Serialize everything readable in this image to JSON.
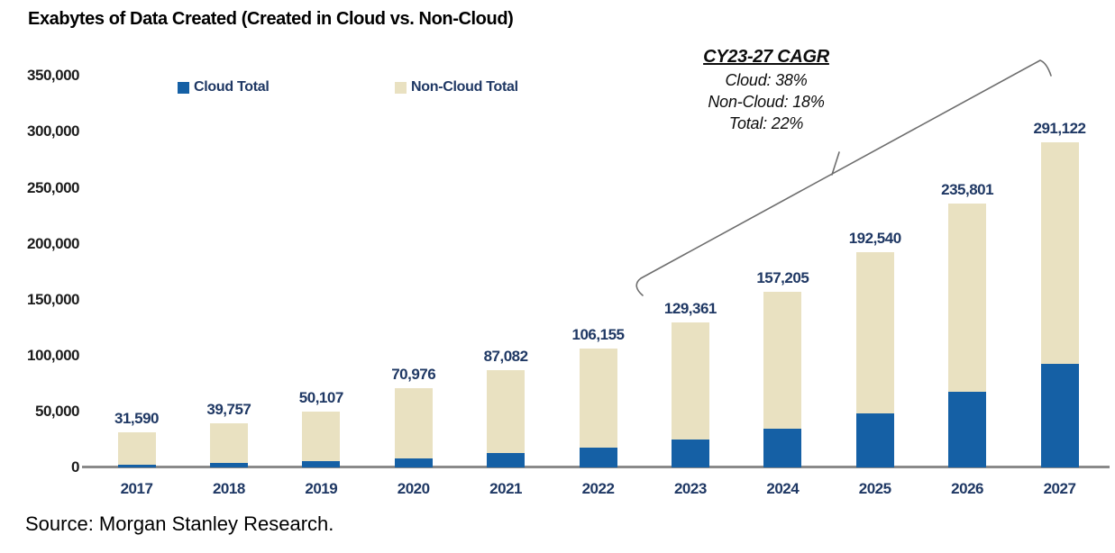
{
  "title": "Exabytes of Data Created (Created in Cloud vs. Non-Cloud)",
  "source_note": "Source: Morgan Stanley Research.",
  "legend": [
    {
      "label": "Cloud Total",
      "color": "#1560A5"
    },
    {
      "label": "Non-Cloud Total",
      "color": "#E9E1C1"
    }
  ],
  "cagr_annotation": {
    "heading": "CY23-27 CAGR",
    "lines": [
      "Cloud: 38%",
      "Non-Cloud: 18%",
      "Total: 22%"
    ]
  },
  "chart_data": {
    "type": "bar",
    "stacked": true,
    "title": "Exabytes of Data Created (Created in Cloud vs. Non-Cloud)",
    "categories": [
      "2017",
      "2018",
      "2019",
      "2020",
      "2021",
      "2022",
      "2023",
      "2024",
      "2025",
      "2026",
      "2027"
    ],
    "totals": [
      31590,
      39757,
      50107,
      70976,
      87082,
      106155,
      129361,
      157205,
      192540,
      235801,
      291122
    ],
    "total_labels": [
      "31,590",
      "39,757",
      "50,107",
      "70,976",
      "87,082",
      "106,155",
      "129,361",
      "157,205",
      "192,540",
      "235,801",
      "291,122"
    ],
    "series": [
      {
        "name": "Cloud Total",
        "color": "#1560A5",
        "estimated_from_pixels": true,
        "values": [
          2500,
          3900,
          5700,
          8400,
          12600,
          17500,
          25000,
          34800,
          48700,
          67700,
          93000
        ]
      },
      {
        "name": "Non-Cloud Total",
        "color": "#E9E1C1",
        "estimated_from_pixels": true,
        "values": [
          29090,
          35857,
          44407,
          62576,
          74482,
          88655,
          104361,
          122405,
          143840,
          168101,
          198122
        ]
      }
    ],
    "ylim": [
      0,
      350000
    ],
    "yticks": [
      0,
      50000,
      100000,
      150000,
      200000,
      250000,
      300000,
      350000
    ],
    "ytick_labels": [
      "0",
      "50,000",
      "100,000",
      "150,000",
      "200,000",
      "250,000",
      "300,000",
      "350,000"
    ],
    "grid": false,
    "legend_position": "top"
  },
  "colors": {
    "cloud_bar": "#1560A5",
    "non_cloud_bar": "#E9E1C1",
    "value_label_text": "#1F3864",
    "axis_line": "#8A8A8A",
    "brace": "#6E6E6E",
    "text_black": "#000000"
  }
}
